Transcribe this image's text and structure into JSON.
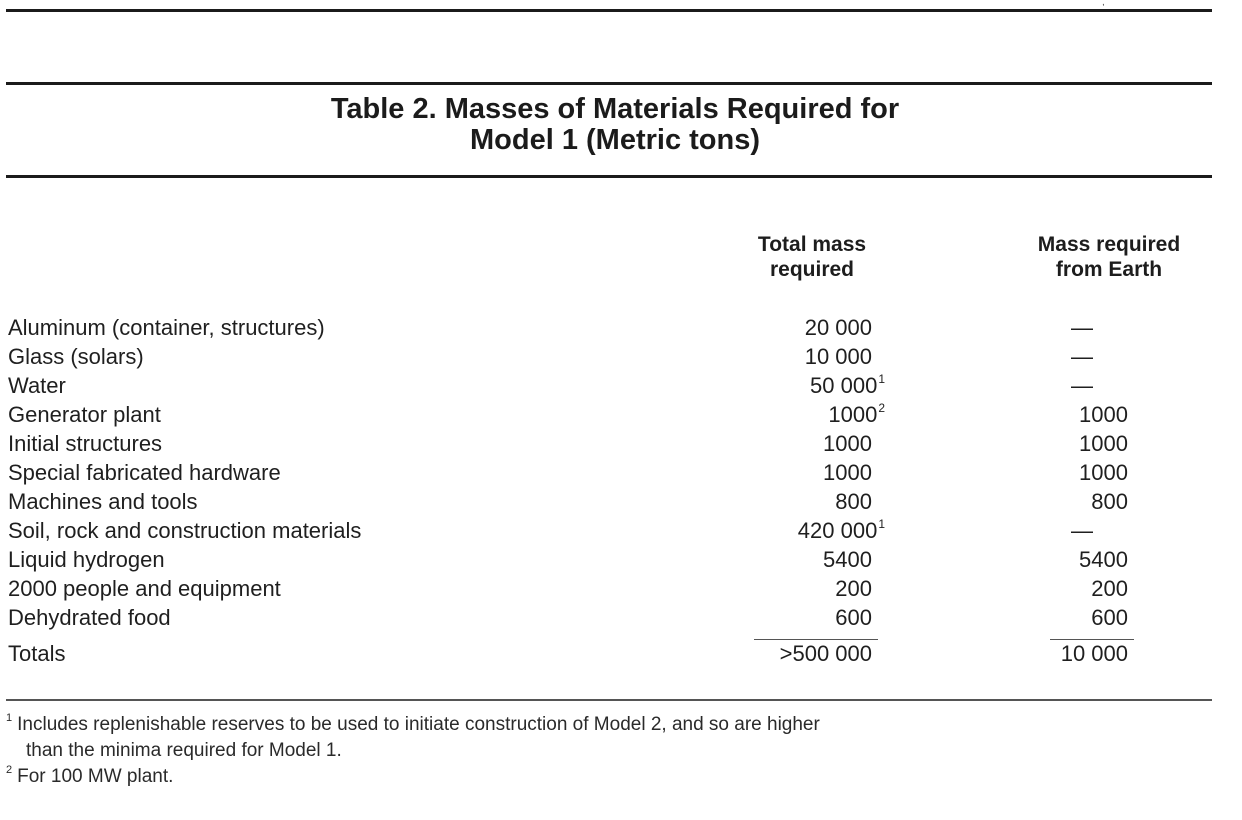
{
  "table": {
    "title_line1": "Table 2. Masses of Materials Required for",
    "title_line2": "Model 1 (Metric tons)",
    "columns": {
      "total_line1": "Total mass",
      "total_line2": "required",
      "earth_line1": "Mass required",
      "earth_line2": "from Earth"
    },
    "rows": [
      {
        "label": "Aluminum (container, structures)",
        "total": "20 000",
        "total_note": "",
        "earth": "—"
      },
      {
        "label": "Glass (solars)",
        "total": "10 000",
        "total_note": "",
        "earth": "—"
      },
      {
        "label": "Water",
        "total": "50 000",
        "total_note": "1",
        "earth": "—"
      },
      {
        "label": "Generator plant",
        "total": "1000",
        "total_note": "2",
        "earth": "1000"
      },
      {
        "label": "Initial structures",
        "total": "1000",
        "total_note": "",
        "earth": "1000"
      },
      {
        "label": "Special fabricated hardware",
        "total": "1000",
        "total_note": "",
        "earth": "1000"
      },
      {
        "label": "Machines and tools",
        "total": "800",
        "total_note": "",
        "earth": "800"
      },
      {
        "label": "Soil, rock and construction materials",
        "total": "420 000",
        "total_note": "1",
        "earth": "—"
      },
      {
        "label": "Liquid hydrogen",
        "total": "5400",
        "total_note": "",
        "earth": "5400"
      },
      {
        "label": "2000 people and equipment",
        "total": "200",
        "total_note": "",
        "earth": "200"
      },
      {
        "label": "Dehydrated food",
        "total": "600",
        "total_note": "",
        "earth": "600"
      }
    ],
    "totals": {
      "label": "Totals",
      "total": ">500 000",
      "earth": "10 000"
    },
    "footnotes": [
      {
        "mark": "1",
        "line1": "Includes replenishable reserves to be used to initiate construction of Model 2, and so are higher",
        "line2": "than the minima required for Model 1."
      },
      {
        "mark": "2",
        "line1": "For 100 MW plant.",
        "line2": ""
      }
    ]
  }
}
